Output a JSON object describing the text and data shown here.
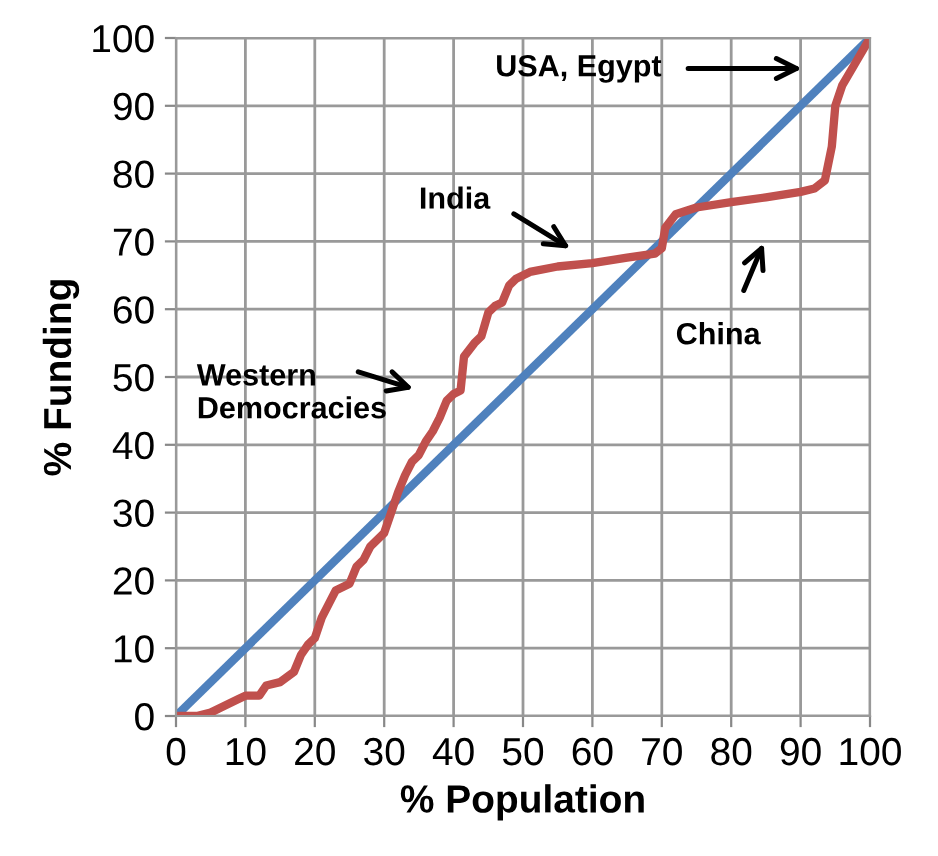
{
  "chart_data": {
    "type": "line",
    "xlabel": "% Population",
    "ylabel": "% Funding",
    "xlim": [
      0,
      100
    ],
    "ylim": [
      0,
      100
    ],
    "xticks": [
      0,
      10,
      20,
      30,
      40,
      50,
      60,
      70,
      80,
      90,
      100
    ],
    "yticks": [
      0,
      10,
      20,
      30,
      40,
      50,
      60,
      70,
      80,
      90,
      100
    ],
    "grid": true,
    "legend": false,
    "marker": "none",
    "line_style": "solid",
    "series": [
      {
        "color": "#4f81bd",
        "x": [
          0,
          100
        ],
        "values": [
          0,
          100
        ]
      },
      {
        "color": "#c0504d",
        "x": [
          0,
          3,
          5,
          7,
          9,
          10,
          12,
          13,
          15,
          17,
          18,
          19,
          20,
          21,
          22,
          23,
          25,
          26,
          27,
          28,
          29,
          30,
          31,
          32,
          33,
          34,
          35,
          36,
          37,
          38,
          39,
          40,
          41,
          41.5,
          43,
          44,
          45,
          46,
          47,
          48,
          49,
          51,
          55,
          60,
          65,
          69,
          70,
          70.5,
          72,
          75,
          80,
          85,
          90,
          92,
          93.5,
          94.5,
          95,
          96,
          98,
          100
        ],
        "values": [
          0,
          0,
          0.5,
          1.5,
          2.5,
          3,
          3,
          4.5,
          5,
          6.5,
          9,
          10.5,
          11.5,
          14.5,
          16.5,
          18.5,
          19.5,
          22,
          23,
          25,
          26,
          27,
          30,
          33,
          35.5,
          37.5,
          38.5,
          40.5,
          42,
          44,
          46.5,
          47.5,
          48,
          53,
          55,
          56,
          59.5,
          60.5,
          61,
          63.5,
          64.5,
          65.5,
          66.3,
          66.8,
          67.6,
          68.2,
          69,
          72,
          74,
          75,
          75.8,
          76.5,
          77.3,
          77.8,
          79,
          84,
          90,
          93,
          96.5,
          100
        ]
      }
    ],
    "annotations": [
      "Western\nDemocracies",
      "India",
      "China",
      "USA, Egypt"
    ]
  }
}
